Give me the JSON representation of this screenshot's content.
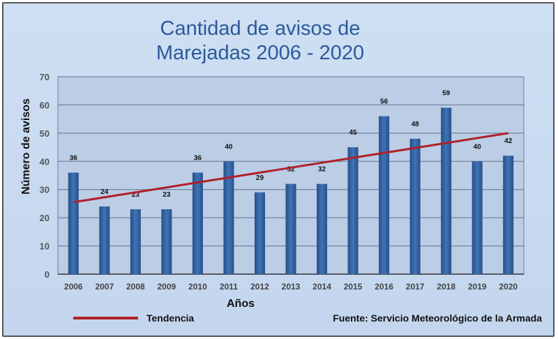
{
  "chart_data": {
    "type": "bar",
    "title": [
      "Cantidad de avisos de",
      "Marejadas 2006 - 2020"
    ],
    "xlabel": "Años",
    "ylabel": "Número de avisos",
    "ylim": [
      0,
      70
    ],
    "yticks": [
      0,
      10,
      20,
      30,
      40,
      50,
      60,
      70
    ],
    "grid": true,
    "categories": [
      "2006",
      "2007",
      "2008",
      "2009",
      "2010",
      "2011",
      "2012",
      "2013",
      "2014",
      "2015",
      "2016",
      "2017",
      "2018",
      "2019",
      "2020"
    ],
    "values": [
      36,
      24,
      23,
      23,
      36,
      40,
      29,
      32,
      32,
      45,
      56,
      48,
      59,
      40,
      42
    ],
    "trend": {
      "name": "Tendencia",
      "start": 25.5,
      "end": 50,
      "color": "#b0202a"
    },
    "bar_color": "#2f5b96",
    "legend_placement": "bottom-left",
    "source": "Fuente: Servicio Meteorológico de la Armada"
  }
}
